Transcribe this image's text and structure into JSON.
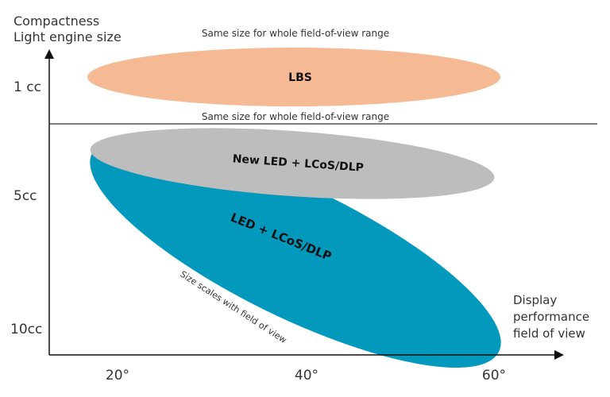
{
  "y_axis": {
    "title_line1": "Compactness",
    "title_line2": "Light engine size",
    "ticks": [
      "1 cc",
      "5cc",
      "10cc"
    ]
  },
  "x_axis": {
    "title_line1": "Display",
    "title_line2": "performance",
    "title_line3": "field of view",
    "ticks": [
      "20°",
      "40°",
      "60°"
    ]
  },
  "annotations": {
    "top": "Same size for whole field-of-view range",
    "divider": "Same size for whole field-of-view range",
    "scaling": "Size scales with field of view"
  },
  "regions": {
    "lbs": {
      "label": "LBS",
      "color": "#f5b994"
    },
    "new_led": {
      "label": "New LED + LCoS/DLP",
      "color": "#bdbdbd"
    },
    "led": {
      "label": "LED + LCoS/DLP",
      "color": "#0399bd"
    }
  }
}
